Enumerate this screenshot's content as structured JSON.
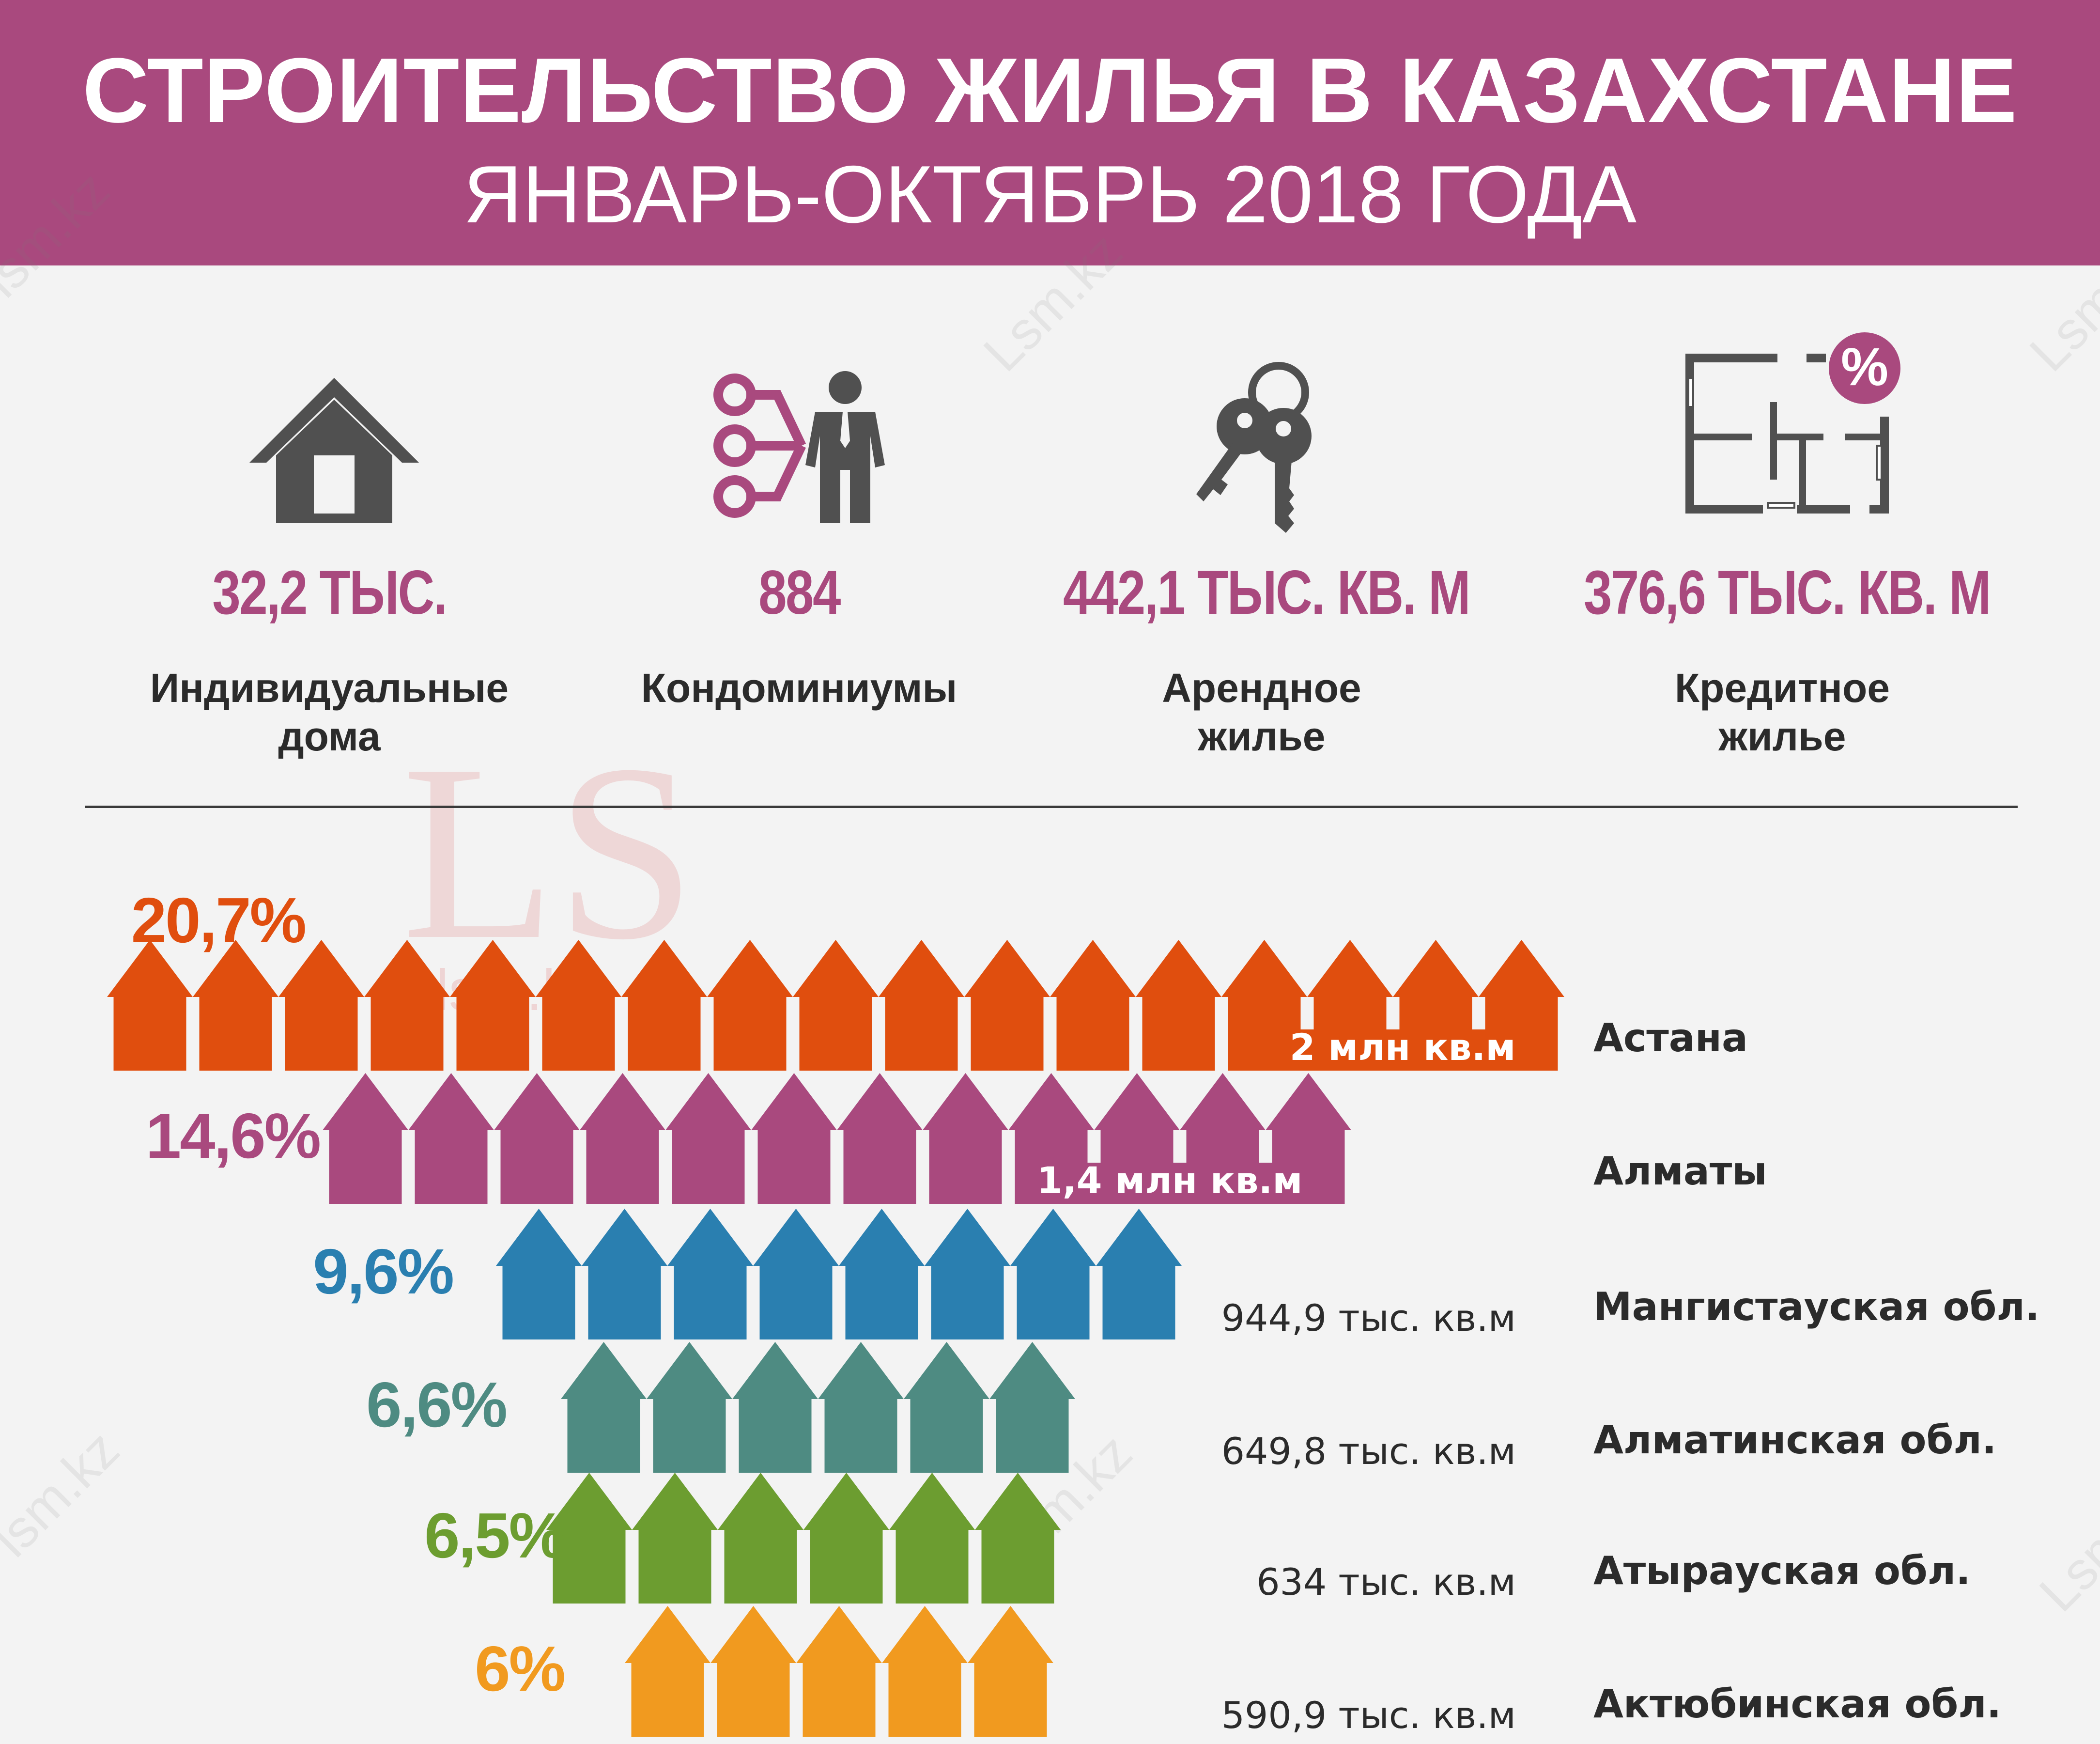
{
  "header": {
    "title": "СТРОИТЕЛЬСТВО ЖИЛЬЯ В КАЗАХСТАНЕ",
    "subtitle": "ЯНВАРЬ-ОКТЯБРЬ 2018 ГОДА",
    "background_color": "#a9497e"
  },
  "stats": [
    {
      "icon": "house-icon",
      "value": "32,2 ТЫС.",
      "label": "Индивидуальные\nдома"
    },
    {
      "icon": "condominium-icon",
      "value": "884",
      "label": "Кондоминиумы"
    },
    {
      "icon": "keys-icon",
      "value": "442,1 ТЫС. КВ. М",
      "label": "Арендное\nжилье"
    },
    {
      "icon": "floorplan-percent-icon",
      "value": "376,6 ТЫС. КВ. М",
      "label": "Кредитное\nжилье"
    }
  ],
  "watermark": {
    "logo": "LS",
    "site": "lsm.kz",
    "site_cap": "Lsm.kz"
  },
  "chart_data": {
    "type": "bar",
    "orientation": "horizontal",
    "unit_icon": "house-arrow-icon",
    "categories": [
      "Астана",
      "Алматы",
      "Мангистауская обл.",
      "Алматинская обл.",
      "Атырауская обл.",
      "Актюбинская обл."
    ],
    "values_pct": [
      20.7,
      14.6,
      9.6,
      6.6,
      6.5,
      6.0
    ],
    "pct_labels": [
      "20,7%",
      "14,6%",
      "9,6%",
      "6,6%",
      "6,5%",
      "6%"
    ],
    "amount_labels": [
      "2 млн кв.м",
      "1,4 млн кв.м",
      "944,9 тыс. кв.м",
      "649,8 тыс. кв.м",
      "634 тыс. кв.м",
      "590,9 тыс. кв.м"
    ],
    "amount_label_inside_bar": [
      true,
      true,
      false,
      false,
      false,
      false
    ],
    "icon_counts": [
      17,
      12,
      8,
      6,
      6,
      5
    ],
    "colors": [
      "#e04e0e",
      "#a9497e",
      "#2a7fb0",
      "#4e8b82",
      "#6c9d30",
      "#f19a1f"
    ]
  }
}
